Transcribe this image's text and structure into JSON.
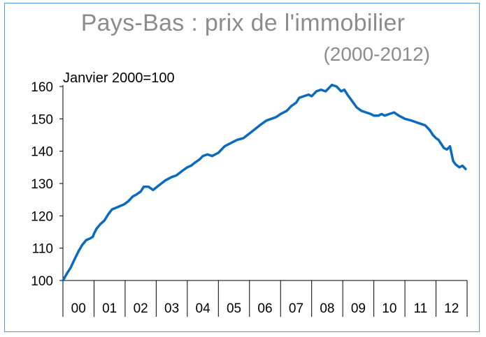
{
  "chart_data": {
    "type": "line",
    "title": "Pays-Bas : prix de l'immobilier",
    "subtitle": "(2000-2012)",
    "unit_label": "Janvier 2000=100",
    "xlabel": "",
    "ylabel": "",
    "ylim": [
      100,
      160
    ],
    "yticks": [
      100,
      110,
      120,
      130,
      140,
      150,
      160
    ],
    "xlim": [
      2000,
      2013
    ],
    "xtick_labels": [
      "00",
      "01",
      "02",
      "03",
      "04",
      "05",
      "06",
      "07",
      "08",
      "09",
      "10",
      "11",
      "12"
    ],
    "grid": false,
    "colors": {
      "line": "#0a6bbd",
      "axis": "#000000",
      "frame": "#5b9bd5"
    },
    "series": [
      {
        "x": [
          2000.0,
          2000.12,
          2000.25,
          2000.37,
          2000.5,
          2000.62,
          2000.75,
          2000.87,
          2000.96,
          2001.0,
          2001.08,
          2001.21,
          2001.33,
          2001.46,
          2001.58,
          2001.71,
          2001.83,
          2001.96,
          2002.1,
          2002.25,
          2002.35,
          2002.5,
          2002.6,
          2002.75,
          2002.9,
          2003.1,
          2003.3,
          2003.5,
          2003.65,
          2003.85,
          2004.0,
          2004.12,
          2004.25,
          2004.4,
          2004.5,
          2004.65,
          2004.8,
          2005.0,
          2005.2,
          2005.4,
          2005.6,
          2005.8,
          2006.0,
          2006.2,
          2006.4,
          2006.55,
          2006.7,
          2006.85,
          2007.0,
          2007.2,
          2007.35,
          2007.5,
          2007.6,
          2007.75,
          2007.9,
          2008.0,
          2008.15,
          2008.3,
          2008.45,
          2008.55,
          2008.65,
          2008.8,
          2008.95,
          2009.05,
          2009.15,
          2009.3,
          2009.45,
          2009.6,
          2009.75,
          2009.9,
          2010.0,
          2010.15,
          2010.25,
          2010.35,
          2010.5,
          2010.65,
          2010.8,
          2011.0,
          2011.2,
          2011.35,
          2011.5,
          2011.65,
          2011.8,
          2011.9,
          2012.0,
          2012.08,
          2012.15,
          2012.25,
          2012.35,
          2012.45,
          2012.55,
          2012.62,
          2012.75,
          2012.85,
          2012.95
        ],
        "y": [
          100.0,
          102.0,
          104.0,
          106.5,
          109.0,
          111.0,
          112.5,
          113.0,
          113.5,
          114.5,
          116.0,
          117.5,
          118.5,
          120.5,
          122.0,
          122.5,
          123.0,
          123.5,
          124.5,
          126.0,
          126.5,
          127.5,
          129.0,
          129.0,
          128.0,
          129.5,
          131.0,
          132.0,
          132.5,
          134.0,
          135.0,
          135.5,
          136.5,
          137.5,
          138.5,
          139.0,
          138.5,
          139.5,
          141.5,
          142.5,
          143.5,
          144.0,
          145.5,
          147.0,
          148.5,
          149.5,
          150.0,
          150.5,
          151.5,
          152.5,
          154.0,
          155.0,
          156.5,
          157.0,
          157.5,
          157.0,
          158.5,
          159.0,
          158.5,
          159.5,
          160.5,
          160.0,
          158.5,
          159.0,
          157.5,
          155.5,
          153.5,
          152.5,
          152.0,
          151.5,
          151.0,
          151.0,
          151.5,
          151.0,
          151.5,
          152.0,
          151.0,
          150.0,
          149.5,
          149.0,
          148.5,
          148.0,
          146.5,
          145.0,
          144.0,
          143.5,
          142.5,
          141.0,
          140.5,
          141.5,
          137.0,
          136.0,
          135.0,
          135.5,
          134.5
        ]
      }
    ]
  }
}
